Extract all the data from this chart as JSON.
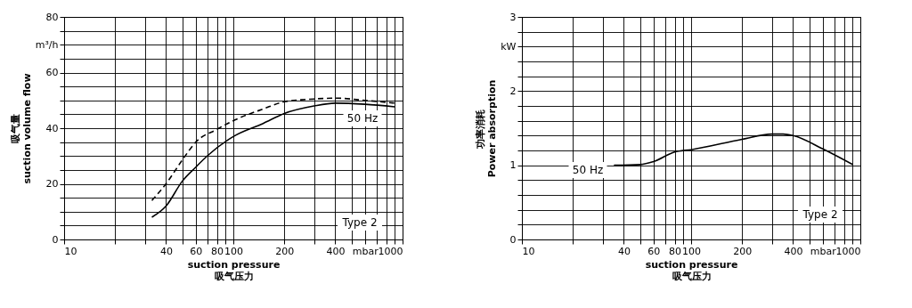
{
  "chart_data": [
    {
      "type": "line",
      "xlabel": "suction pressure\n吸气压力",
      "ylabel": "吸气量\nsuction volume flow",
      "log": "x",
      "grid": true,
      "xlim": [
        10,
        1000
      ],
      "ylim": [
        0,
        80
      ],
      "xticks": [
        10,
        {
          "value": 20,
          "label": null
        },
        {
          "value": 30,
          "label": null
        },
        40,
        {
          "value": 50,
          "label": null
        },
        60,
        {
          "value": 70,
          "label": null
        },
        80,
        {
          "value": 90,
          "label": null
        },
        100,
        200,
        {
          "value": 300,
          "label": null
        },
        400,
        {
          "value": 500,
          "label": null
        },
        {
          "value": 600,
          "label": "mbar"
        },
        {
          "value": 700,
          "label": null
        },
        {
          "value": 800,
          "label": null
        },
        {
          "value": 900,
          "label": null
        },
        1000
      ],
      "yticks": [
        0,
        {
          "value": 5,
          "label": null
        },
        {
          "value": 10,
          "label": null
        },
        {
          "value": 15,
          "label": null
        },
        20,
        {
          "value": 25,
          "label": null
        },
        {
          "value": 30,
          "label": null
        },
        {
          "value": 35,
          "label": null
        },
        40,
        {
          "value": 45,
          "label": null
        },
        {
          "value": 50,
          "label": null
        },
        {
          "value": 55,
          "label": null
        },
        60,
        {
          "value": 65,
          "label": null
        },
        {
          "value": 70,
          "label": "m³/h"
        },
        {
          "value": 75,
          "label": null
        },
        80
      ],
      "series": [
        {
          "color": "#000000",
          "line_style": "solid",
          "x": [
            33,
            40,
            50,
            60,
            70,
            100,
            150,
            200,
            300,
            400,
            600,
            900
          ],
          "values": [
            8,
            12,
            21,
            26,
            30,
            37,
            41.7,
            45.3,
            48,
            49,
            48.6,
            47.7
          ]
        },
        {
          "color": "#000000",
          "line_style": "dashed",
          "x": [
            33,
            40,
            50,
            60,
            80,
            100,
            150,
            200,
            300,
            400,
            600,
            900
          ],
          "values": [
            14,
            20,
            28.6,
            35,
            39.6,
            42.7,
            46.9,
            49.5,
            50.5,
            50.8,
            50,
            49
          ]
        }
      ],
      "annotations": [
        "50 Hz",
        "Type 2"
      ]
    },
    {
      "type": "line",
      "xlabel": "suction pressure\n吸气压力",
      "ylabel": "功率消耗\nPower absorption",
      "log": "x",
      "grid": true,
      "xlim": [
        10,
        1000
      ],
      "ylim": [
        0,
        3
      ],
      "xticks": [
        10,
        {
          "value": 20,
          "label": null
        },
        {
          "value": 30,
          "label": null
        },
        40,
        {
          "value": 50,
          "label": null
        },
        60,
        {
          "value": 70,
          "label": null
        },
        80,
        {
          "value": 90,
          "label": null
        },
        100,
        200,
        {
          "value": 300,
          "label": null
        },
        400,
        {
          "value": 500,
          "label": null
        },
        {
          "value": 600,
          "label": "mbar"
        },
        {
          "value": 700,
          "label": null
        },
        {
          "value": 800,
          "label": null
        },
        {
          "value": 900,
          "label": null
        },
        1000
      ],
      "yticks": [
        0,
        {
          "value": 0.2,
          "label": null
        },
        {
          "value": 0.4,
          "label": null
        },
        {
          "value": 0.6,
          "label": null
        },
        {
          "value": 0.8,
          "label": null
        },
        1,
        {
          "value": 1.2,
          "label": null
        },
        {
          "value": 1.4,
          "label": null
        },
        {
          "value": 1.6,
          "label": null
        },
        {
          "value": 1.8,
          "label": null
        },
        2,
        {
          "value": 2.2,
          "label": null
        },
        {
          "value": 2.4,
          "label": null
        },
        {
          "value": 2.6,
          "label": "kW"
        },
        {
          "value": 2.8,
          "label": null
        },
        3
      ],
      "series": [
        {
          "color": "#000000",
          "line_style": "solid",
          "x": [
            35,
            50,
            60,
            80,
            100,
            200,
            300,
            350,
            400,
            600,
            900
          ],
          "values": [
            1.0,
            1.01,
            1.05,
            1.18,
            1.21,
            1.35,
            1.42,
            1.42,
            1.4,
            1.22,
            1.01
          ]
        }
      ],
      "annotations": [
        "50 Hz",
        "Type 2"
      ]
    }
  ]
}
